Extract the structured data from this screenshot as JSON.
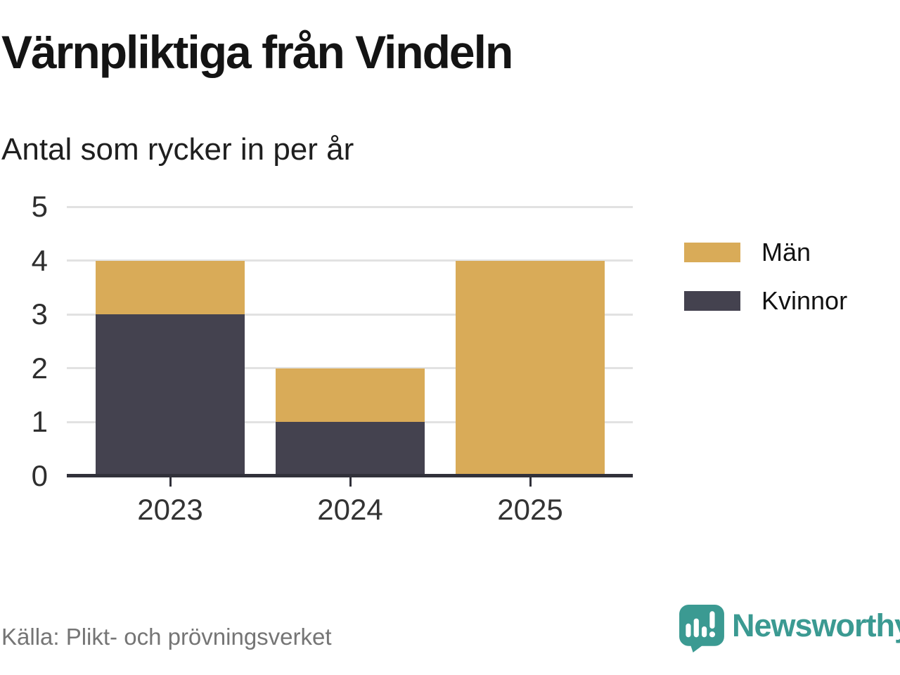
{
  "header": {
    "title": "Värnpliktiga från Vindeln",
    "subtitle": "Antal som rycker in per år"
  },
  "chart_data": {
    "type": "bar",
    "stacked": true,
    "categories": [
      "2023",
      "2024",
      "2025"
    ],
    "series": [
      {
        "name": "Män",
        "color": "#d9ab58",
        "values": [
          1,
          1,
          4
        ]
      },
      {
        "name": "Kvinnor",
        "color": "#44424f",
        "values": [
          3,
          1,
          0
        ]
      }
    ],
    "stack_order_bottom_to_top": [
      "Kvinnor",
      "Män"
    ],
    "totals": [
      4,
      2,
      4
    ],
    "title": "Värnpliktiga från Vindeln",
    "subtitle": "Antal som rycker in per år",
    "xlabel": "",
    "ylabel": "",
    "ylim": [
      0,
      5
    ],
    "yticks": [
      0,
      1,
      2,
      3,
      4,
      5
    ],
    "grid": true,
    "legend_position": "right"
  },
  "legend": {
    "items": [
      {
        "label": "Män",
        "color": "#d9ab58"
      },
      {
        "label": "Kvinnor",
        "color": "#44424f"
      }
    ]
  },
  "footer": {
    "source": "Källa: Plikt- och prövningsverket",
    "brand": "Newsworthy"
  },
  "colors": {
    "men": "#d9ab58",
    "women": "#44424f",
    "gridline": "#e2e2e2",
    "axis": "#31313a",
    "brand_teal": "#3b9a92",
    "source_gray": "#757575"
  },
  "icons": {
    "logo": "newsworthy-speech-bubble-chart-icon"
  }
}
